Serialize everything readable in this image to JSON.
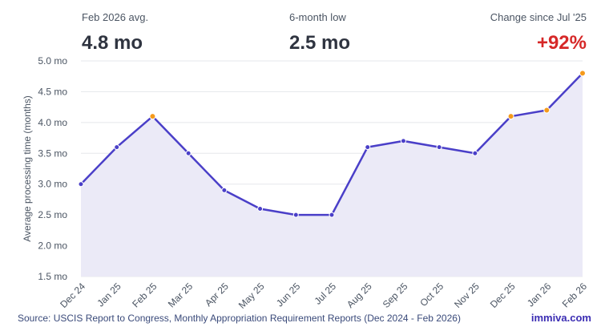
{
  "stats": [
    {
      "label": "Feb 2026 avg.",
      "value": "4.8 mo"
    },
    {
      "label": "6-month low",
      "value": "2.5 mo"
    },
    {
      "label": "Change since Jul '25",
      "value": "+92%"
    }
  ],
  "chart_data": {
    "type": "area",
    "categories": [
      "Dec 24",
      "Jan 25",
      "Feb 25",
      "Mar 25",
      "Apr 25",
      "May 25",
      "Jun 25",
      "Jul 25",
      "Aug 25",
      "Sep 25",
      "Oct 25",
      "Nov 25",
      "Dec 25",
      "Jan 26",
      "Feb 26"
    ],
    "values": [
      3.0,
      3.6,
      4.1,
      3.5,
      2.9,
      2.6,
      2.5,
      2.5,
      3.6,
      3.7,
      3.6,
      3.5,
      4.1,
      4.2,
      4.8
    ],
    "highlighted": [
      "Feb 25",
      "Dec 25",
      "Jan 26",
      "Feb 26"
    ],
    "ylabel": "Average processing time (months)",
    "ylim": [
      1.5,
      5.0
    ],
    "yticks": [
      "1.5 mo",
      "2.0 mo",
      "2.5 mo",
      "3.0 mo",
      "3.5 mo",
      "4.0 mo",
      "4.5 mo",
      "5.0 mo"
    ],
    "ytick_values": [
      1.5,
      2.0,
      2.5,
      3.0,
      3.5,
      4.0,
      4.5,
      5.0
    ],
    "grid": true,
    "colors": {
      "line": "#4a3fc8",
      "fill": "#ebeaf7",
      "point": "#4a3fc8",
      "highlight": "#f59a1b",
      "grid": "#e5e7eb"
    }
  },
  "footer": {
    "source": "Source: USCIS Report to Congress, Monthly Appropriation Requirement Reports (Dec 2024 - Feb 2026)",
    "brand": "immiva.com"
  }
}
